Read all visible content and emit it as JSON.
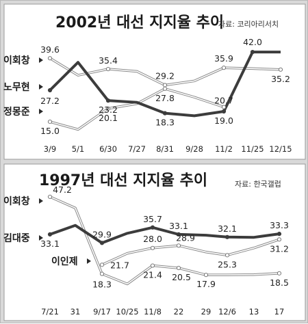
{
  "chart_data": [
    {
      "type": "line",
      "title": "2002년 대선 지지율 추이",
      "source": "자료: 코리아리서치",
      "categories": [
        "3/9",
        "5/1",
        "6/30",
        "7/27",
        "8/31",
        "9/28",
        "11/2",
        "11/25",
        "12/15"
      ],
      "ylim": [
        10,
        46
      ],
      "series": [
        {
          "name": "이회창",
          "color": "#ffffff",
          "values": [
            39.6,
            33.0,
            35.4,
            34.5,
            29.2,
            30.8,
            35.9,
            35.6,
            35.2
          ],
          "labels": [
            "39.6",
            null,
            "35.4",
            null,
            "29.2",
            null,
            "35.9",
            null,
            "35.2"
          ]
        },
        {
          "name": "노무현",
          "color": "#3c3c3c",
          "values": [
            27.2,
            38.0,
            23.2,
            22.5,
            18.3,
            17.3,
            19.0,
            42.0,
            42.0
          ],
          "labels": [
            "27.2",
            null,
            "23.2",
            null,
            "18.3",
            null,
            "19.0",
            "42.0",
            null
          ]
        },
        {
          "name": "정몽준",
          "color": "#ffffff",
          "values": [
            15.0,
            12.0,
            20.1,
            22.0,
            27.8,
            24.5,
            20.7,
            null,
            null
          ],
          "labels": [
            "15.0",
            null,
            "20.1",
            null,
            "27.8",
            null,
            "20.7",
            null,
            null
          ]
        }
      ]
    },
    {
      "type": "line",
      "title": "1997년 대선 지지율 추이",
      "source": "자료: 한국갤럽",
      "categories": [
        "7/21",
        "31",
        "9/17",
        "10/25",
        "11/8",
        "22",
        "29",
        "12/6",
        "13",
        "17"
      ],
      "ylim": [
        10,
        50
      ],
      "series": [
        {
          "name": "이회창",
          "color": "#ffffff",
          "values": [
            47.2,
            43.0,
            18.3,
            14.5,
            21.4,
            20.5,
            17.9,
            17.9,
            18.0,
            18.5
          ],
          "labels": [
            "47.2",
            null,
            "18.3",
            null,
            "21.4",
            "20.5",
            "17.9",
            null,
            null,
            "18.5"
          ]
        },
        {
          "name": "김대중",
          "color": "#3c3c3c",
          "values": [
            33.1,
            36.5,
            29.9,
            33.5,
            35.7,
            33.1,
            32.8,
            32.1,
            32.0,
            33.3
          ],
          "labels": [
            "33.1",
            null,
            "29.9",
            null,
            "35.7",
            "33.1",
            null,
            "32.1",
            null,
            "33.3"
          ]
        },
        {
          "name": "이인제",
          "color": "#ffffff",
          "values": [
            null,
            null,
            21.7,
            26.0,
            28.0,
            28.9,
            26.5,
            25.3,
            28.0,
            31.2
          ],
          "labels": [
            null,
            null,
            "21.7",
            null,
            "28.0",
            "28.9",
            null,
            "25.3",
            null,
            "31.2"
          ]
        }
      ]
    }
  ]
}
